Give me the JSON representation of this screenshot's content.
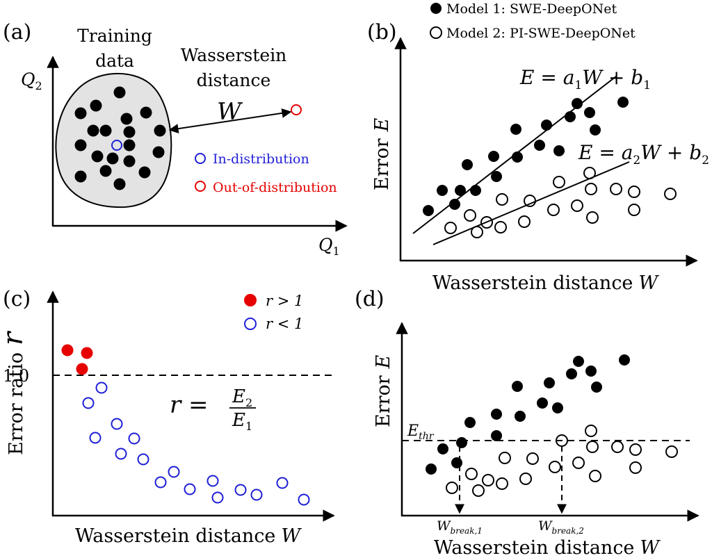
{
  "colors": {
    "black": "#000000",
    "blue": "#1f1fd6",
    "red": "#e60000",
    "cloud": "#e3e3e3"
  },
  "panel_a": {
    "label": "(a)",
    "training_line1": "Training",
    "training_line2": "data",
    "wass_line1": "Wasserstein",
    "wass_line2": "distance",
    "wass_symbol": "W",
    "y_axis": "Q",
    "y_axis_sub": "2",
    "x_axis": "Q",
    "x_axis_sub": "1",
    "legend_in": "In-distribution",
    "legend_out": "Out-of-distribution"
  },
  "panel_b": {
    "label": "(b)",
    "legend_model1": "Model 1: SWE-DeepONet",
    "legend_model2": "Model 2: PI-SWE-DeepONet",
    "eq1": {
      "lhs": "E = a",
      "a_sub": "1",
      "mid": "W + b",
      "b_sub": "1"
    },
    "eq2": {
      "lhs": "E = a",
      "a_sub": "2",
      "mid": "W + b",
      "b_sub": "2"
    },
    "y_label": "Error",
    "y_symbol": "E",
    "x_label": "Wasserstein distance",
    "x_symbol": "W"
  },
  "panel_c": {
    "label": "(c)",
    "legend_r_gt": "r > 1",
    "legend_r_lt": "r < 1",
    "tick_1": "1.0",
    "y_label": "Error ratio",
    "y_symbol": "r",
    "ratio_lhs": "r =",
    "ratio_num": "E",
    "ratio_num_sub": "2",
    "ratio_den": "E",
    "ratio_den_sub": "1",
    "x_label": "Wasserstein distance",
    "x_symbol": "W"
  },
  "panel_d": {
    "label": "(d)",
    "y_label": "Error",
    "y_symbol": "E",
    "thr": "E",
    "thr_sub": "thr",
    "wb1": "W",
    "wb1_sub": "break,1",
    "wb2": "W",
    "wb2_sub": "break,2",
    "x_label": "Wasserstein distance",
    "x_symbol": "W"
  }
}
